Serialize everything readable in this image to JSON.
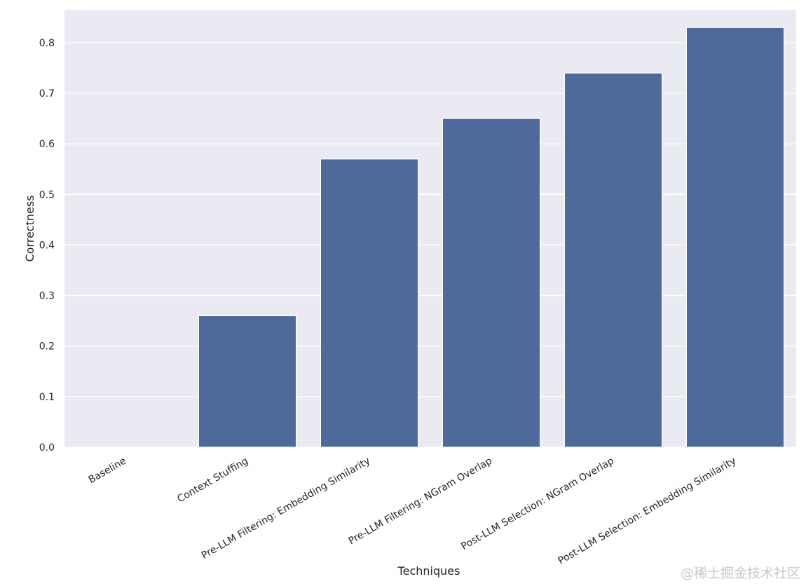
{
  "chart_data": {
    "type": "bar",
    "categories": [
      "Baseline",
      "Context Stuffing",
      "Pre-LLM Filtering: Embedding Similarity",
      "Pre-LLM Filtering: NGram Overlap",
      "Post-LLM Selection: NGram Overlap",
      "Post-LLM Selection: Embedding Similarity"
    ],
    "values": [
      0.0,
      0.26,
      0.57,
      0.65,
      0.74,
      0.83
    ],
    "xlabel": "Techniques",
    "ylabel": "Correctness",
    "ylim": [
      0,
      0.865
    ],
    "yticks": [
      "0.0",
      "0.1",
      "0.2",
      "0.3",
      "0.4",
      "0.5",
      "0.6",
      "0.7",
      "0.8"
    ],
    "grid": true,
    "colors": {
      "bar": "#4e6a9a",
      "background": "#eaeaf2",
      "grid": "#ffffff",
      "text": "#262626"
    }
  },
  "watermark": "@稀土掘金技术社区"
}
